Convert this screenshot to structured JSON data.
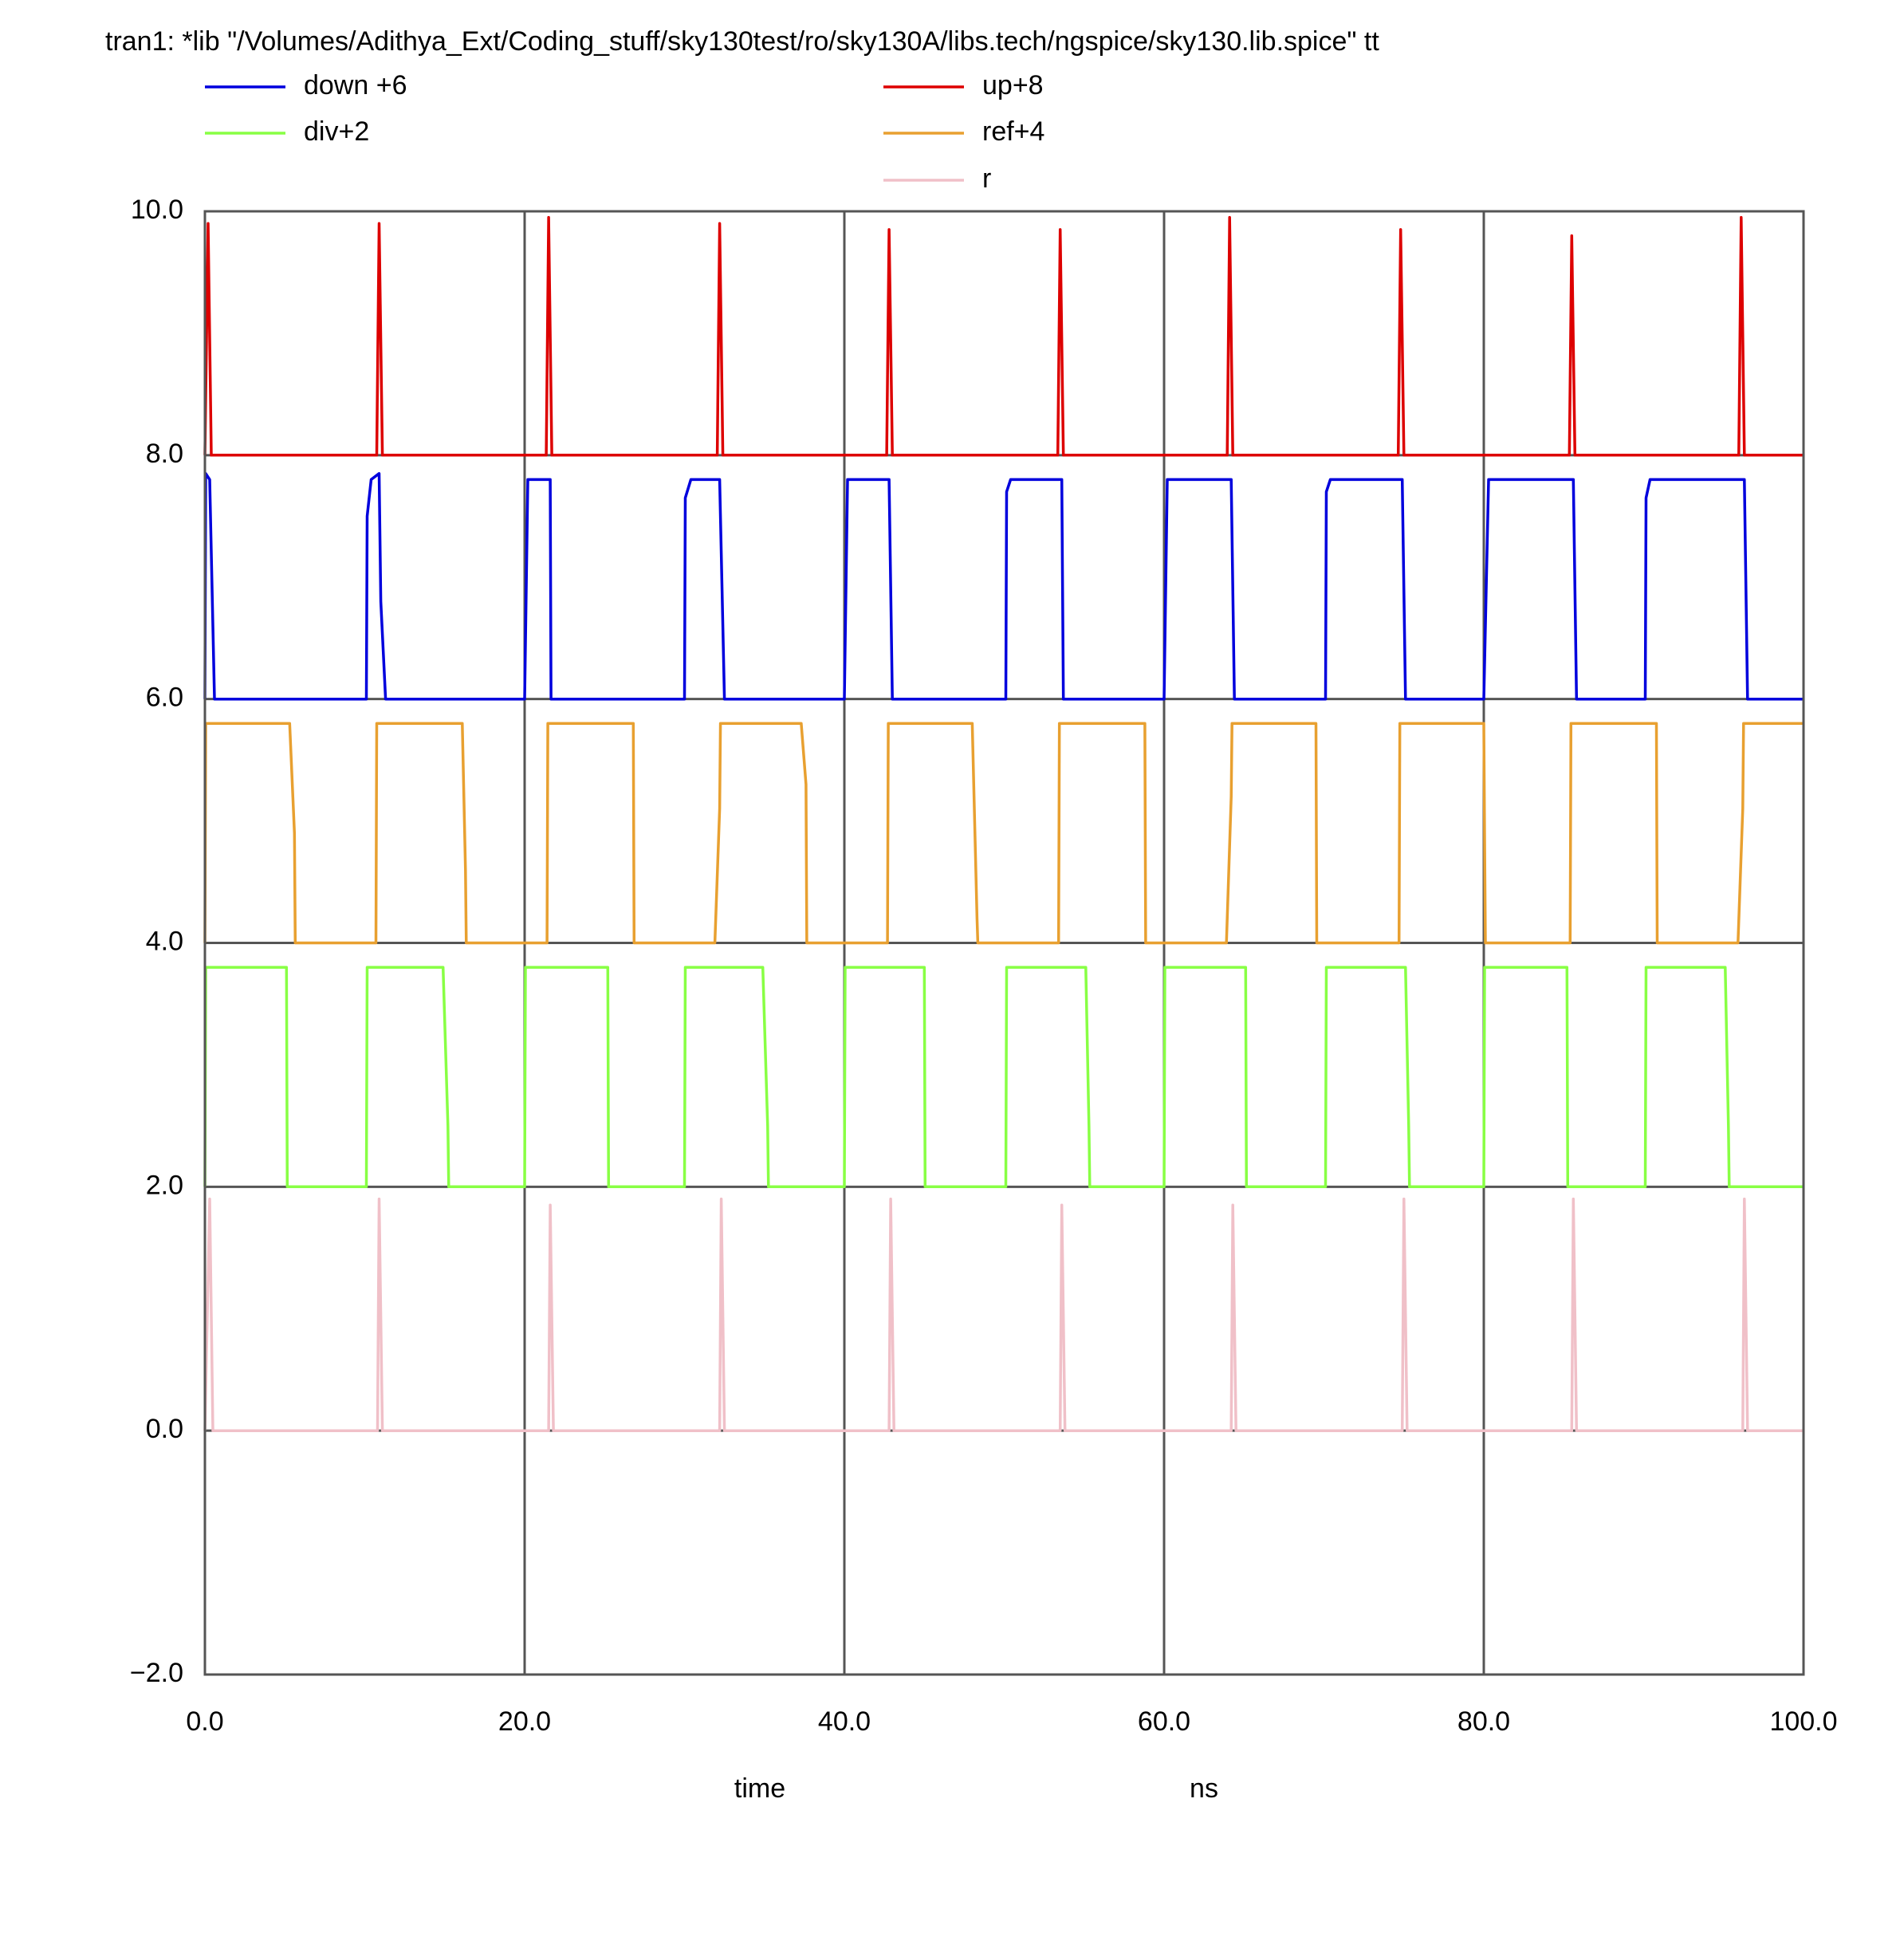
{
  "chart_data": {
    "type": "line",
    "title": "tran1: *lib \"/Volumes/Adithya_Ext/Coding_stuff/sky130test/ro/sky130A/libs.tech/ngspice/sky130.lib.spice\" tt",
    "xlabel": "time",
    "xunit": "ns",
    "xlim": [
      0,
      100
    ],
    "ylim": [
      -2,
      10
    ],
    "xticks": [
      {
        "value": 0,
        "label": "0.0"
      },
      {
        "value": 20,
        "label": "20.0"
      },
      {
        "value": 40,
        "label": "40.0"
      },
      {
        "value": 60,
        "label": "60.0"
      },
      {
        "value": 80,
        "label": "80.0"
      },
      {
        "value": 100,
        "label": "100.0"
      }
    ],
    "yticks": [
      {
        "value": -2,
        "label": "−2.0"
      },
      {
        "value": 0,
        "label": "0.0"
      },
      {
        "value": 2,
        "label": "2.0"
      },
      {
        "value": 4,
        "label": "4.0"
      },
      {
        "value": 6,
        "label": "6.0"
      },
      {
        "value": 8,
        "label": "8.0"
      },
      {
        "value": 10,
        "label": "10.0"
      }
    ],
    "grid": true,
    "series": [
      {
        "name": "down +6",
        "color": "#0000dd",
        "x": [
          0,
          0.05,
          0.3,
          0.5,
          0.6,
          10.1,
          10.15,
          10.4,
          10.9,
          11.0,
          11.3,
          20.0,
          20.2,
          21.6,
          21.65,
          30.0,
          30.05,
          30.4,
          32.2,
          32.5,
          40.0,
          40.2,
          42.8,
          43.0,
          50.1,
          50.15,
          50.4,
          53.6,
          53.7,
          60.0,
          60.2,
          64.2,
          64.4,
          70.1,
          70.15,
          70.4,
          74.9,
          75.1,
          80.0,
          80.3,
          85.6,
          85.8,
          90.1,
          90.15,
          90.4,
          96.3,
          96.5,
          100
        ],
        "values": [
          6,
          7.85,
          7.8,
          6.6,
          6,
          6,
          7.5,
          7.8,
          7.85,
          6.8,
          6,
          6,
          7.8,
          7.8,
          6,
          6,
          7.65,
          7.8,
          7.8,
          6,
          6,
          7.8,
          7.8,
          6,
          6,
          7.7,
          7.8,
          7.8,
          6,
          6,
          7.8,
          7.8,
          6,
          6,
          7.7,
          7.8,
          7.8,
          6,
          6,
          7.8,
          7.8,
          6,
          6,
          7.65,
          7.8,
          7.8,
          6,
          6
        ]
      },
      {
        "name": "div+2",
        "color": "#88ff44",
        "x": [
          0,
          0.05,
          5.1,
          5.15,
          10.1,
          10.15,
          14.9,
          15.2,
          15.25,
          20.0,
          20.05,
          25.2,
          25.25,
          30.0,
          30.05,
          34.9,
          35.2,
          35.25,
          40.0,
          40.05,
          45.0,
          45.05,
          50.1,
          50.15,
          55.1,
          55.3,
          55.35,
          60.0,
          60.05,
          65.1,
          65.15,
          70.1,
          70.15,
          75.1,
          75.3,
          75.35,
          80.0,
          80.05,
          85.2,
          85.25,
          90.1,
          90.15,
          95.1,
          95.3,
          95.35,
          100
        ],
        "values": [
          2,
          3.8,
          3.8,
          2,
          2,
          3.8,
          3.8,
          2.5,
          2,
          2,
          3.8,
          3.8,
          2,
          2,
          3.8,
          3.8,
          2.5,
          2,
          2,
          3.8,
          3.8,
          2,
          2,
          3.8,
          3.8,
          2.5,
          2,
          2,
          3.8,
          3.8,
          2,
          2,
          3.8,
          3.8,
          2.5,
          2,
          2,
          3.8,
          3.8,
          2,
          2,
          3.8,
          3.8,
          2.5,
          2,
          2
        ]
      },
      {
        "name": "up+8",
        "color": "#dd0000",
        "x": [
          0,
          0.2,
          0.4,
          10.75,
          10.9,
          11.1,
          21.35,
          21.5,
          21.7,
          32.05,
          32.2,
          32.4,
          42.65,
          42.8,
          43.0,
          53.35,
          53.5,
          53.7,
          63.95,
          64.1,
          64.3,
          74.65,
          74.8,
          75.0,
          85.35,
          85.5,
          85.7,
          95.95,
          96.1,
          96.3,
          100
        ],
        "values": [
          8,
          9.9,
          8,
          8,
          9.9,
          8,
          8,
          9.95,
          8,
          8,
          9.9,
          8,
          8,
          9.85,
          8,
          8,
          9.85,
          8,
          8,
          9.95,
          8,
          8,
          9.85,
          8,
          8,
          9.8,
          8,
          8,
          9.95,
          8,
          8
        ]
      },
      {
        "name": "ref+4",
        "color": "#e8a030",
        "x": [
          0,
          0.05,
          5.3,
          5.6,
          5.65,
          10.7,
          10.75,
          16.1,
          16.3,
          16.35,
          21.4,
          21.45,
          26.8,
          26.85,
          31.9,
          32.2,
          32.25,
          37.3,
          37.6,
          37.65,
          42.7,
          42.75,
          48.0,
          48.3,
          48.35,
          53.4,
          53.45,
          58.8,
          58.85,
          63.9,
          64.2,
          64.25,
          69.5,
          69.55,
          74.7,
          74.75,
          80.0,
          80.05,
          80.1,
          85.4,
          85.45,
          90.8,
          90.85,
          95.9,
          96.2,
          96.25,
          100
        ],
        "values": [
          4,
          5.8,
          5.8,
          4.9,
          4,
          4,
          5.8,
          5.8,
          4.6,
          4,
          4,
          5.8,
          5.8,
          4,
          4,
          5.1,
          5.8,
          5.8,
          5.3,
          4,
          4,
          5.8,
          5.8,
          4.2,
          4,
          4,
          5.8,
          5.8,
          4,
          4,
          5.2,
          5.8,
          5.8,
          4,
          4,
          5.8,
          5.8,
          4.85,
          4,
          4,
          5.8,
          5.8,
          4,
          4,
          5.1,
          5.8,
          5.8
        ]
      },
      {
        "name": "r",
        "color": "#f0c0c8",
        "x": [
          0,
          0.3,
          0.5,
          10.8,
          10.9,
          11.1,
          21.5,
          21.6,
          21.8,
          32.2,
          32.3,
          32.5,
          42.8,
          42.9,
          43.1,
          53.5,
          53.6,
          53.8,
          64.2,
          64.3,
          64.5,
          74.9,
          75.0,
          75.2,
          85.5,
          85.6,
          85.8,
          96.2,
          96.3,
          96.5,
          100
        ],
        "values": [
          0,
          1.9,
          0,
          0,
          1.9,
          0,
          0,
          1.85,
          0,
          0,
          1.9,
          0,
          0,
          1.9,
          0,
          0,
          1.85,
          0,
          0,
          1.85,
          0,
          0,
          1.9,
          0,
          0,
          1.9,
          0,
          0,
          1.9,
          0,
          0
        ]
      }
    ]
  }
}
